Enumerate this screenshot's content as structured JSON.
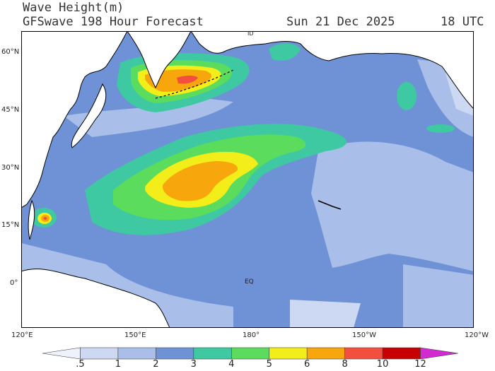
{
  "header": {
    "title": "Wave Height(m)",
    "subtitle": "GFSwave 198 Hour Forecast",
    "date": "Sun 21 Dec 2025",
    "time": "18 UTC"
  },
  "map_labels": {
    "latitudes": [
      "60°N",
      "45°N",
      "30°N",
      "15°N",
      "0°"
    ],
    "longitudes": [
      "120°E",
      "150°E",
      "180°",
      "150°W",
      "120°W"
    ],
    "equator": "EQ",
    "dateline": "ID"
  },
  "colorbar": {
    "labels": [
      ".5",
      "1",
      "2",
      "3",
      "4",
      "5",
      "6",
      "8",
      "10",
      "12"
    ],
    "colors": [
      "#eef3fb",
      "#cdd9f2",
      "#a9bfe9",
      "#6f91d6",
      "#3ec9a2",
      "#5cdc5c",
      "#f3ee1a",
      "#f7a60c",
      "#f24f3e",
      "#c70000",
      "#d22bd2"
    ]
  },
  "colors": {
    "ocean_low": "#a9bfe9",
    "ocean_mid": "#6f91d6",
    "land": "#ffffff",
    "coast": "#000000"
  }
}
